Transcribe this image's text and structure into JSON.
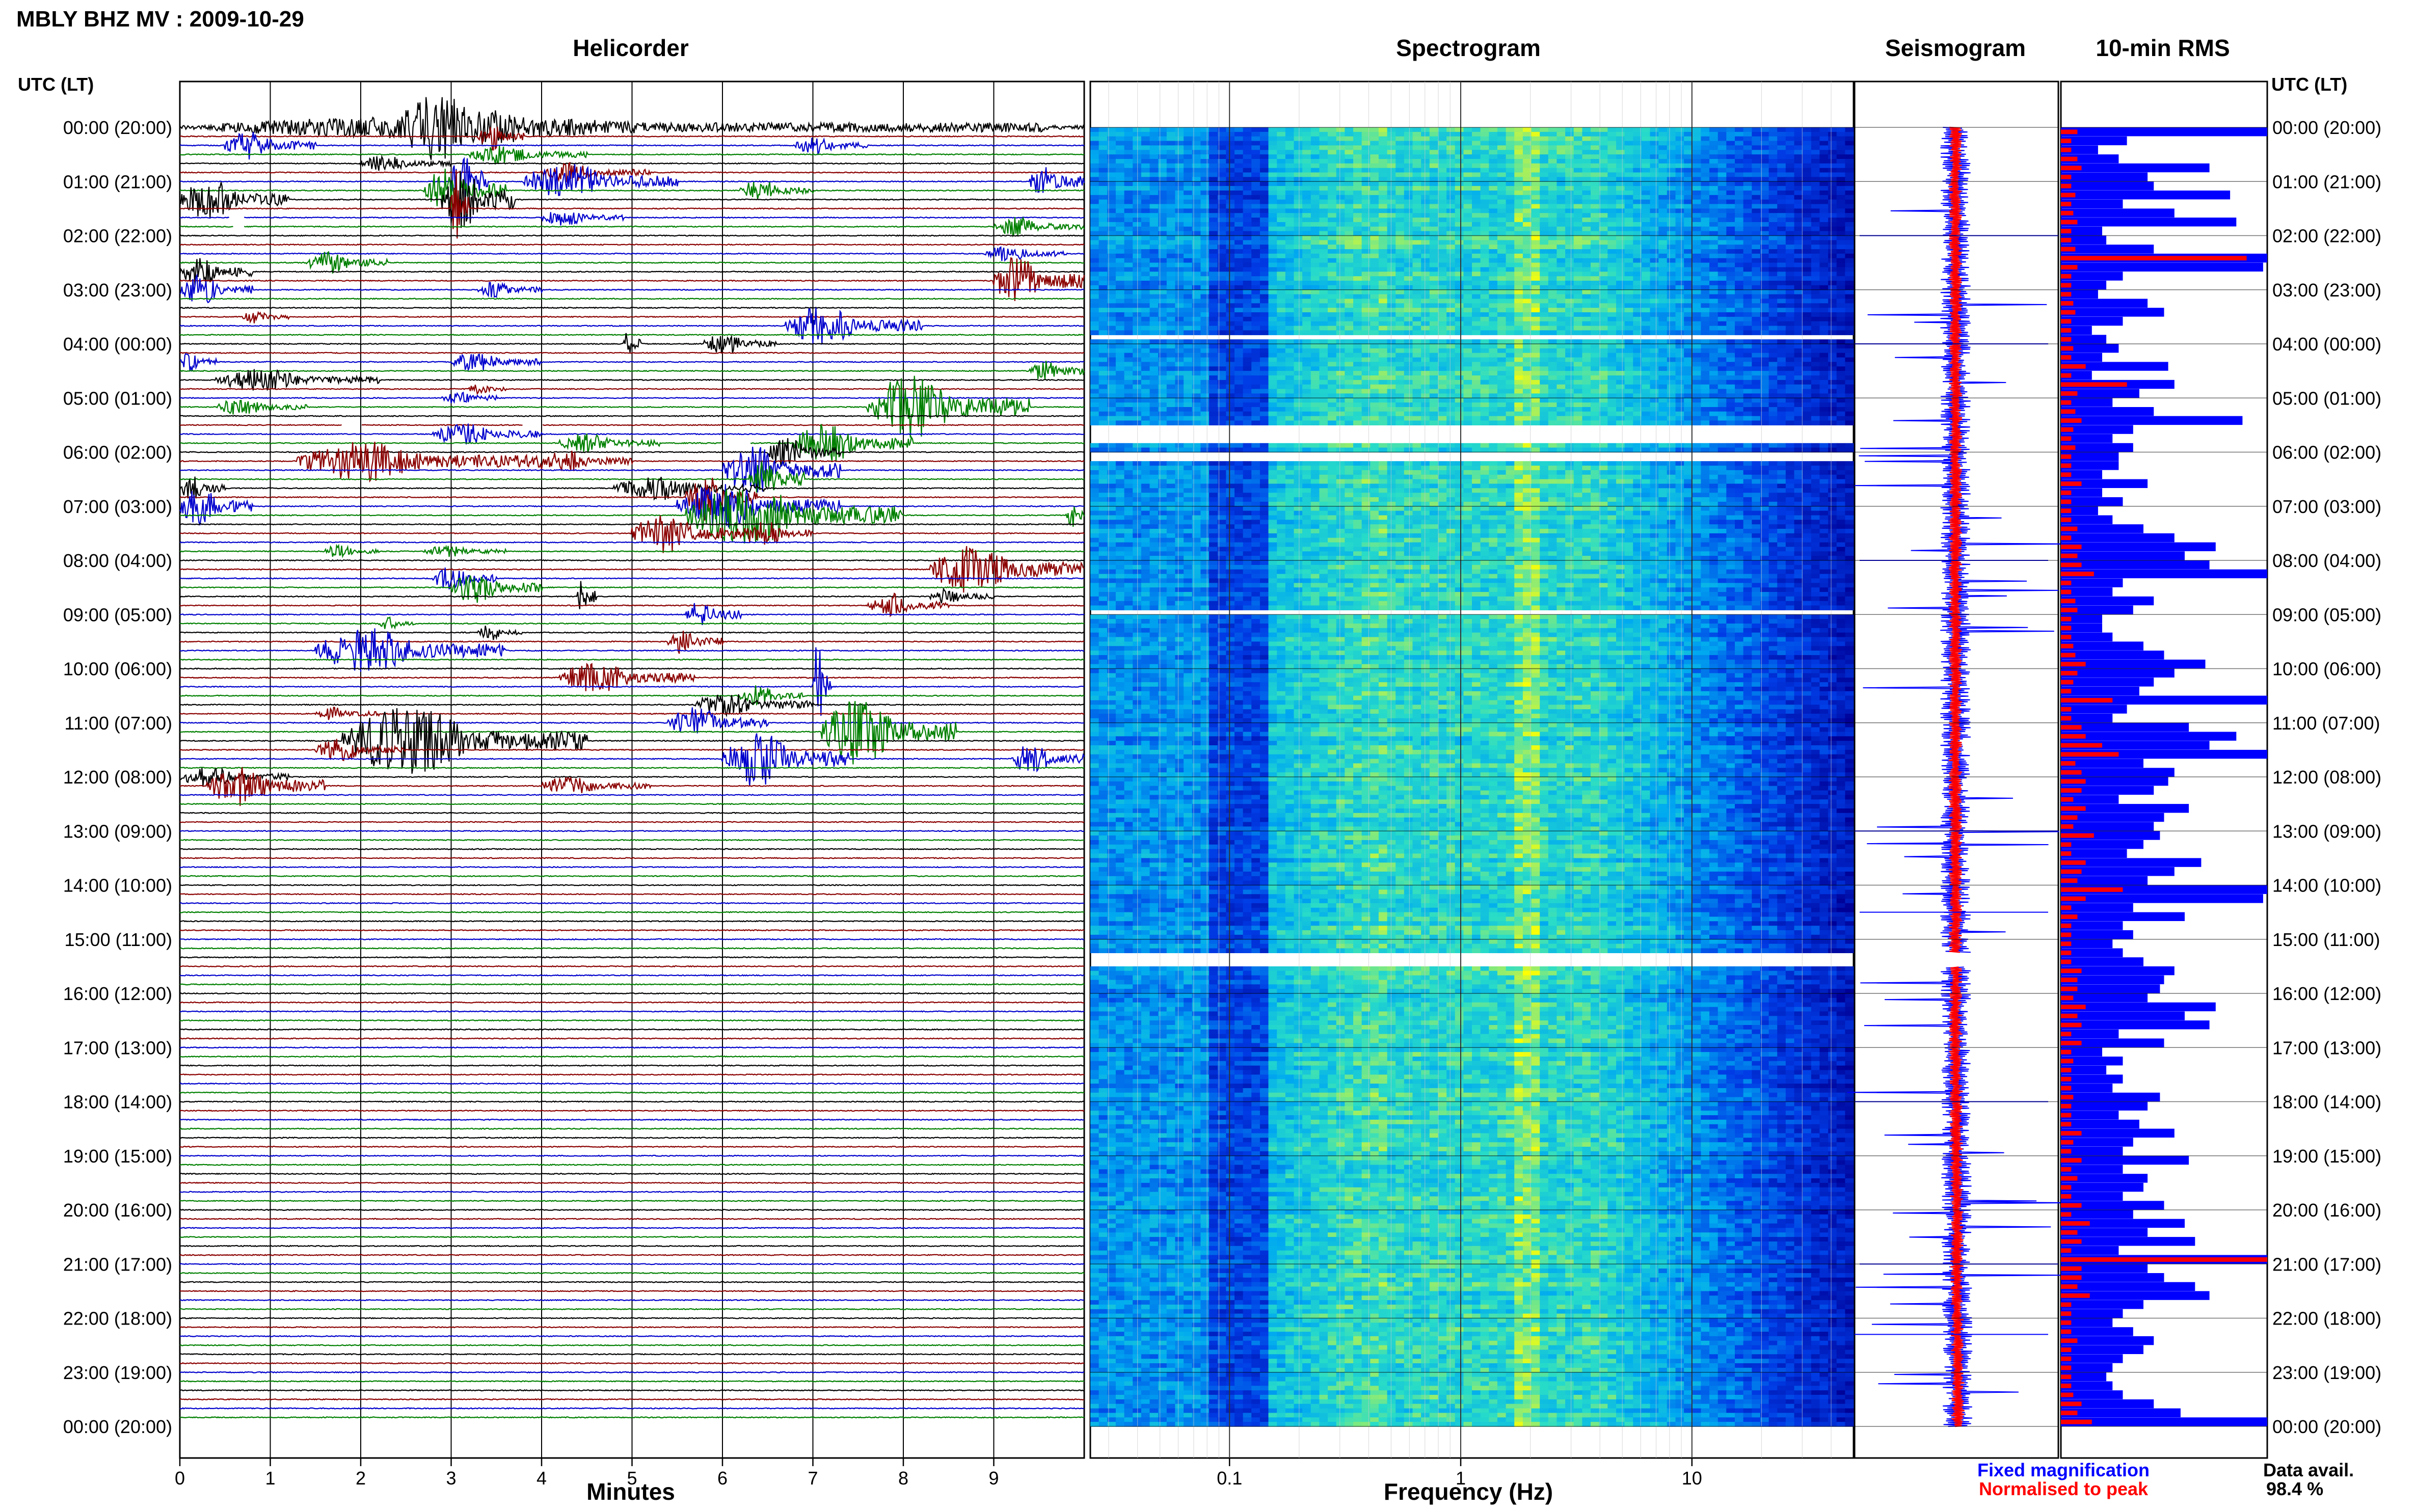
{
  "header": {
    "title": "MBLY BHZ MV : 2009-10-29",
    "utc_label": "UTC (LT)",
    "utc_label_right": "UTC (LT)"
  },
  "panels": {
    "helicorder": "Helicorder",
    "spectrogram": "Spectrogram",
    "seismogram": "Seismogram",
    "rms": "10-min RMS"
  },
  "colors": {
    "trace_cycle": [
      "#000000",
      "#8b0000",
      "#0000cd",
      "#008000"
    ],
    "fixed_magnification": "#0000ff",
    "normalised_to_peak": "#ff0000",
    "spectrogram_low": "#0000a0",
    "spectrogram_high": "#ffff00"
  },
  "legend": {
    "fixed": "Fixed magnification",
    "normalised": "Normalised to peak"
  },
  "data_avail": {
    "label": "Data avail.",
    "value": "98.4 %"
  },
  "chart_data": [
    {
      "type": "line",
      "panel": "helicorder",
      "title": "Helicorder",
      "xlabel": "Minutes",
      "xlim": [
        0,
        10
      ],
      "x_ticks": [
        "0",
        "1",
        "2",
        "3",
        "4",
        "5",
        "6",
        "7",
        "8",
        "9"
      ],
      "y_tick_labels": [
        "00:00 (20:00)",
        "01:00 (21:00)",
        "02:00 (22:00)",
        "03:00 (23:00)",
        "04:00 (00:00)",
        "05:00 (01:00)",
        "06:00 (02:00)",
        "07:00 (03:00)",
        "08:00 (04:00)",
        "09:00 (05:00)",
        "10:00 (06:00)",
        "11:00 (07:00)",
        "12:00 (08:00)",
        "13:00 (09:00)",
        "14:00 (10:00)",
        "15:00 (11:00)",
        "16:00 (12:00)",
        "17:00 (13:00)",
        "18:00 (14:00)",
        "19:00 (15:00)",
        "20:00 (16:00)",
        "21:00 (17:00)",
        "22:00 (18:00)",
        "23:00 (19:00)",
        "00:00 (20:00)"
      ],
      "lines_per_hour": 6,
      "events": [
        {
          "row": 0,
          "start": 0.4,
          "end": 9.6,
          "amp": 0.6
        },
        {
          "row": 0,
          "start": 2.5,
          "end": 3.8,
          "amp": 1.5
        },
        {
          "row": 1,
          "start": 3.3,
          "end": 3.8,
          "amp": 0.9
        },
        {
          "row": 2,
          "start": 0.5,
          "end": 1.5,
          "amp": 0.9
        },
        {
          "row": 2,
          "start": 6.8,
          "end": 7.6,
          "amp": 0.6
        },
        {
          "row": 3,
          "start": 3.2,
          "end": 4.5,
          "amp": 0.6
        },
        {
          "row": 4,
          "start": 2.0,
          "end": 3.0,
          "amp": 0.5
        },
        {
          "row": 5,
          "start": 4.0,
          "end": 5.2,
          "amp": 0.6
        },
        {
          "row": 6,
          "start": 3.0,
          "end": 3.4,
          "amp": 2.5
        },
        {
          "row": 6,
          "start": 3.8,
          "end": 5.5,
          "amp": 1.2
        },
        {
          "row": 6,
          "start": 9.4,
          "end": 10.0,
          "amp": 1.2
        },
        {
          "row": 7,
          "start": 2.7,
          "end": 3.6,
          "amp": 1.5
        },
        {
          "row": 7,
          "start": 6.2,
          "end": 7.0,
          "amp": 0.7
        },
        {
          "row": 8,
          "start": 0.0,
          "end": 1.2,
          "amp": 1.3
        },
        {
          "row": 8,
          "start": 2.9,
          "end": 3.7,
          "amp": 2.2
        },
        {
          "row": 9,
          "start": 3.0,
          "end": 3.2,
          "amp": 2.8
        },
        {
          "row": 10,
          "start": 4.0,
          "end": 4.9,
          "amp": 0.5
        },
        {
          "row": 11,
          "start": 9.0,
          "end": 10.0,
          "amp": 0.6
        },
        {
          "row": 14,
          "start": 8.9,
          "end": 9.8,
          "amp": 0.5
        },
        {
          "row": 15,
          "start": 1.4,
          "end": 2.3,
          "amp": 0.7
        },
        {
          "row": 16,
          "start": 0.0,
          "end": 0.8,
          "amp": 1.0
        },
        {
          "row": 17,
          "start": 9.0,
          "end": 10.0,
          "amp": 1.6
        },
        {
          "row": 18,
          "start": 0.0,
          "end": 0.8,
          "amp": 1.0
        },
        {
          "row": 18,
          "start": 3.3,
          "end": 4.0,
          "amp": 0.5
        },
        {
          "row": 21,
          "start": 0.7,
          "end": 1.2,
          "amp": 0.4
        },
        {
          "row": 22,
          "start": 6.7,
          "end": 8.2,
          "amp": 1.2
        },
        {
          "row": 24,
          "start": 4.9,
          "end": 5.1,
          "amp": 1.0
        },
        {
          "row": 24,
          "start": 5.8,
          "end": 6.6,
          "amp": 0.7
        },
        {
          "row": 26,
          "start": 0.0,
          "end": 0.4,
          "amp": 0.6
        },
        {
          "row": 26,
          "start": 3.0,
          "end": 4.0,
          "amp": 0.6
        },
        {
          "row": 27,
          "start": 9.4,
          "end": 10.0,
          "amp": 0.7
        },
        {
          "row": 28,
          "start": 0.4,
          "end": 2.2,
          "amp": 0.7
        },
        {
          "row": 29,
          "start": 3.2,
          "end": 3.6,
          "amp": 0.4
        },
        {
          "row": 30,
          "start": 2.9,
          "end": 3.5,
          "amp": 0.5
        },
        {
          "row": 31,
          "start": 7.6,
          "end": 9.4,
          "amp": 2.0
        },
        {
          "row": 31,
          "start": 0.4,
          "end": 1.4,
          "amp": 0.5
        },
        {
          "row": 34,
          "start": 2.8,
          "end": 4.0,
          "amp": 0.7
        },
        {
          "row": 35,
          "start": 4.2,
          "end": 5.3,
          "amp": 0.6
        },
        {
          "row": 35,
          "start": 6.8,
          "end": 8.1,
          "amp": 1.4
        },
        {
          "row": 36,
          "start": 6.5,
          "end": 7.3,
          "amp": 1.0
        },
        {
          "row": 37,
          "start": 1.3,
          "end": 4.0,
          "amp": 1.3
        },
        {
          "row": 37,
          "start": 4.0,
          "end": 5.0,
          "amp": 0.7
        },
        {
          "row": 38,
          "start": 6.0,
          "end": 7.3,
          "amp": 1.6
        },
        {
          "row": 39,
          "start": 6.3,
          "end": 6.9,
          "amp": 1.5
        },
        {
          "row": 40,
          "start": 4.8,
          "end": 6.5,
          "amp": 0.8
        },
        {
          "row": 40,
          "start": 0.0,
          "end": 0.5,
          "amp": 0.8
        },
        {
          "row": 41,
          "start": 5.6,
          "end": 6.4,
          "amp": 1.5
        },
        {
          "row": 42,
          "start": 0.0,
          "end": 0.8,
          "amp": 1.2
        },
        {
          "row": 42,
          "start": 5.5,
          "end": 7.3,
          "amp": 1.5
        },
        {
          "row": 43,
          "start": 5.6,
          "end": 8.0,
          "amp": 2.0
        },
        {
          "row": 43,
          "start": 9.8,
          "end": 10.0,
          "amp": 0.9
        },
        {
          "row": 45,
          "start": 5.0,
          "end": 6.3,
          "amp": 1.3
        },
        {
          "row": 45,
          "start": 6.3,
          "end": 7.0,
          "amp": 0.8
        },
        {
          "row": 47,
          "start": 1.6,
          "end": 2.2,
          "amp": 0.4
        },
        {
          "row": 47,
          "start": 2.7,
          "end": 3.6,
          "amp": 0.4
        },
        {
          "row": 49,
          "start": 8.3,
          "end": 10.0,
          "amp": 1.6
        },
        {
          "row": 50,
          "start": 2.8,
          "end": 3.5,
          "amp": 0.8
        },
        {
          "row": 51,
          "start": 3.0,
          "end": 4.0,
          "amp": 1.0
        },
        {
          "row": 52,
          "start": 4.4,
          "end": 4.6,
          "amp": 1.3
        },
        {
          "row": 52,
          "start": 8.3,
          "end": 9.0,
          "amp": 0.5
        },
        {
          "row": 53,
          "start": 7.6,
          "end": 8.5,
          "amp": 0.8
        },
        {
          "row": 54,
          "start": 5.6,
          "end": 6.2,
          "amp": 0.9
        },
        {
          "row": 55,
          "start": 2.2,
          "end": 2.6,
          "amp": 0.4
        },
        {
          "row": 56,
          "start": 3.3,
          "end": 3.8,
          "amp": 0.5
        },
        {
          "row": 57,
          "start": 5.4,
          "end": 6.0,
          "amp": 0.8
        },
        {
          "row": 58,
          "start": 1.5,
          "end": 3.6,
          "amp": 1.5
        },
        {
          "row": 61,
          "start": 4.2,
          "end": 5.7,
          "amp": 1.0
        },
        {
          "row": 62,
          "start": 7.0,
          "end": 7.2,
          "amp": 3.5
        },
        {
          "row": 63,
          "start": 6.2,
          "end": 6.9,
          "amp": 0.7
        },
        {
          "row": 64,
          "start": 5.7,
          "end": 7.0,
          "amp": 0.8
        },
        {
          "row": 65,
          "start": 1.5,
          "end": 2.2,
          "amp": 0.4
        },
        {
          "row": 66,
          "start": 5.4,
          "end": 6.5,
          "amp": 1.0
        },
        {
          "row": 67,
          "start": 7.1,
          "end": 8.6,
          "amp": 2.2
        },
        {
          "row": 68,
          "start": 1.8,
          "end": 4.5,
          "amp": 2.2
        },
        {
          "row": 69,
          "start": 1.5,
          "end": 2.5,
          "amp": 0.7
        },
        {
          "row": 70,
          "start": 6.0,
          "end": 7.4,
          "amp": 1.8
        },
        {
          "row": 70,
          "start": 9.2,
          "end": 10.0,
          "amp": 1.0
        },
        {
          "row": 72,
          "start": 0.0,
          "end": 1.2,
          "amp": 0.6
        },
        {
          "row": 73,
          "start": 0.3,
          "end": 1.6,
          "amp": 1.3
        },
        {
          "row": 73,
          "start": 4.0,
          "end": 5.2,
          "amp": 0.6
        }
      ],
      "gaps": [
        {
          "row": 10,
          "start": 0.55,
          "end": 0.7
        },
        {
          "row": 11,
          "start": 0.6,
          "end": 0.7
        },
        {
          "row": 33,
          "start": 1.8,
          "end": 2.0
        },
        {
          "row": 33,
          "start": 3.8,
          "end": 4.0
        },
        {
          "row": 35,
          "start": 6.0,
          "end": 6.3
        }
      ]
    },
    {
      "type": "heatmap",
      "panel": "spectrogram",
      "title": "Spectrogram",
      "xlabel": "Frequency (Hz)",
      "x_scale": "log",
      "xlim": [
        0.025,
        50
      ],
      "x_ticks": [
        {
          "value": 0.1,
          "label": "0.1"
        },
        {
          "value": 1,
          "label": "1"
        },
        {
          "value": 10,
          "label": "10"
        }
      ],
      "gaps_hours": [
        {
          "start": 3.78,
          "end": 3.84
        },
        {
          "start": 5.5,
          "end": 5.8
        },
        {
          "start": 6.0,
          "end": 6.15
        },
        {
          "start": 8.85,
          "end": 8.95
        },
        {
          "start": 15.25,
          "end": 15.45
        }
      ]
    },
    {
      "type": "line",
      "panel": "seismogram",
      "title": "Seismogram",
      "series": [
        {
          "name": "Fixed magnification",
          "color": "#0000ff"
        },
        {
          "name": "Normalised to peak",
          "color": "#ff0000"
        }
      ]
    },
    {
      "type": "bar",
      "panel": "rms",
      "title": "10-min RMS",
      "orientation": "horizontal",
      "unit": "arbitrary",
      "series": [
        {
          "name": "Fixed magnification",
          "color": "#0000ff",
          "values": [
            1.0,
            0.32,
            0.18,
            0.28,
            0.72,
            0.42,
            0.45,
            0.82,
            0.3,
            0.55,
            0.85,
            0.2,
            0.22,
            0.45,
            1.0,
            0.98,
            0.3,
            0.22,
            0.18,
            0.42,
            0.5,
            0.3,
            0.15,
            0.22,
            0.28,
            0.2,
            0.52,
            0.15,
            0.55,
            0.38,
            0.25,
            0.45,
            0.88,
            0.35,
            0.25,
            0.35,
            0.28,
            0.28,
            0.2,
            0.42,
            0.2,
            0.3,
            0.18,
            0.25,
            0.4,
            0.55,
            0.75,
            0.6,
            0.72,
            1.0,
            0.3,
            0.25,
            0.45,
            0.35,
            0.2,
            0.2,
            0.25,
            0.4,
            0.5,
            0.7,
            0.55,
            0.45,
            0.38,
            1.0,
            0.32,
            0.25,
            0.62,
            0.85,
            0.72,
            1.0,
            0.4,
            0.55,
            0.52,
            0.45,
            0.28,
            0.62,
            0.5,
            0.45,
            0.48,
            0.4,
            0.32,
            0.68,
            0.55,
            0.42,
            1.0,
            0.98,
            0.35,
            0.6,
            0.3,
            0.35,
            0.25,
            0.3,
            0.4,
            0.55,
            0.5,
            0.48,
            0.42,
            0.75,
            0.6,
            0.72,
            0.28,
            0.5,
            0.2,
            0.3,
            0.22,
            0.3,
            0.25,
            0.48,
            0.42,
            0.28,
            0.38,
            0.55,
            0.35,
            0.3,
            0.62,
            0.3,
            0.42,
            0.4,
            0.3,
            0.5,
            0.35,
            0.6,
            0.42,
            0.65,
            0.28,
            1.0,
            0.42,
            0.5,
            0.65,
            0.72,
            0.4,
            0.3,
            0.25,
            0.35,
            0.45,
            0.4,
            0.3,
            0.25,
            0.22,
            0.25,
            0.3,
            0.45,
            0.58,
            1.0
          ]
        },
        {
          "name": "Normalised to peak",
          "color": "#ff0000",
          "values": [
            0.08,
            0.05,
            0.05,
            0.08,
            0.1,
            0.05,
            0.05,
            0.07,
            0.05,
            0.06,
            0.08,
            0.05,
            0.05,
            0.07,
            0.9,
            0.08,
            0.05,
            0.05,
            0.05,
            0.06,
            0.07,
            0.05,
            0.05,
            0.05,
            0.06,
            0.05,
            0.12,
            0.05,
            0.32,
            0.08,
            0.05,
            0.07,
            0.1,
            0.06,
            0.05,
            0.07,
            0.05,
            0.05,
            0.05,
            0.1,
            0.05,
            0.05,
            0.05,
            0.05,
            0.08,
            0.05,
            0.1,
            0.08,
            0.1,
            0.16,
            0.05,
            0.05,
            0.07,
            0.08,
            0.05,
            0.05,
            0.05,
            0.06,
            0.07,
            0.12,
            0.08,
            0.06,
            0.05,
            0.25,
            0.05,
            0.05,
            0.1,
            0.12,
            0.2,
            0.28,
            0.07,
            0.1,
            0.12,
            0.1,
            0.06,
            0.12,
            0.08,
            0.06,
            0.16,
            0.05,
            0.05,
            0.12,
            0.1,
            0.08,
            0.3,
            0.12,
            0.05,
            0.08,
            0.05,
            0.05,
            0.05,
            0.05,
            0.05,
            0.1,
            0.08,
            0.08,
            0.06,
            0.12,
            0.08,
            0.1,
            0.05,
            0.1,
            0.05,
            0.06,
            0.05,
            0.05,
            0.05,
            0.06,
            0.05,
            0.05,
            0.05,
            0.1,
            0.06,
            0.05,
            0.1,
            0.05,
            0.08,
            0.05,
            0.05,
            0.1,
            0.05,
            0.14,
            0.08,
            0.1,
            0.05,
            1.0,
            0.1,
            0.1,
            0.08,
            0.14,
            0.05,
            0.05,
            0.05,
            0.05,
            0.08,
            0.05,
            0.05,
            0.05,
            0.05,
            0.05,
            0.06,
            0.1,
            0.08,
            0.15
          ]
        }
      ]
    }
  ]
}
